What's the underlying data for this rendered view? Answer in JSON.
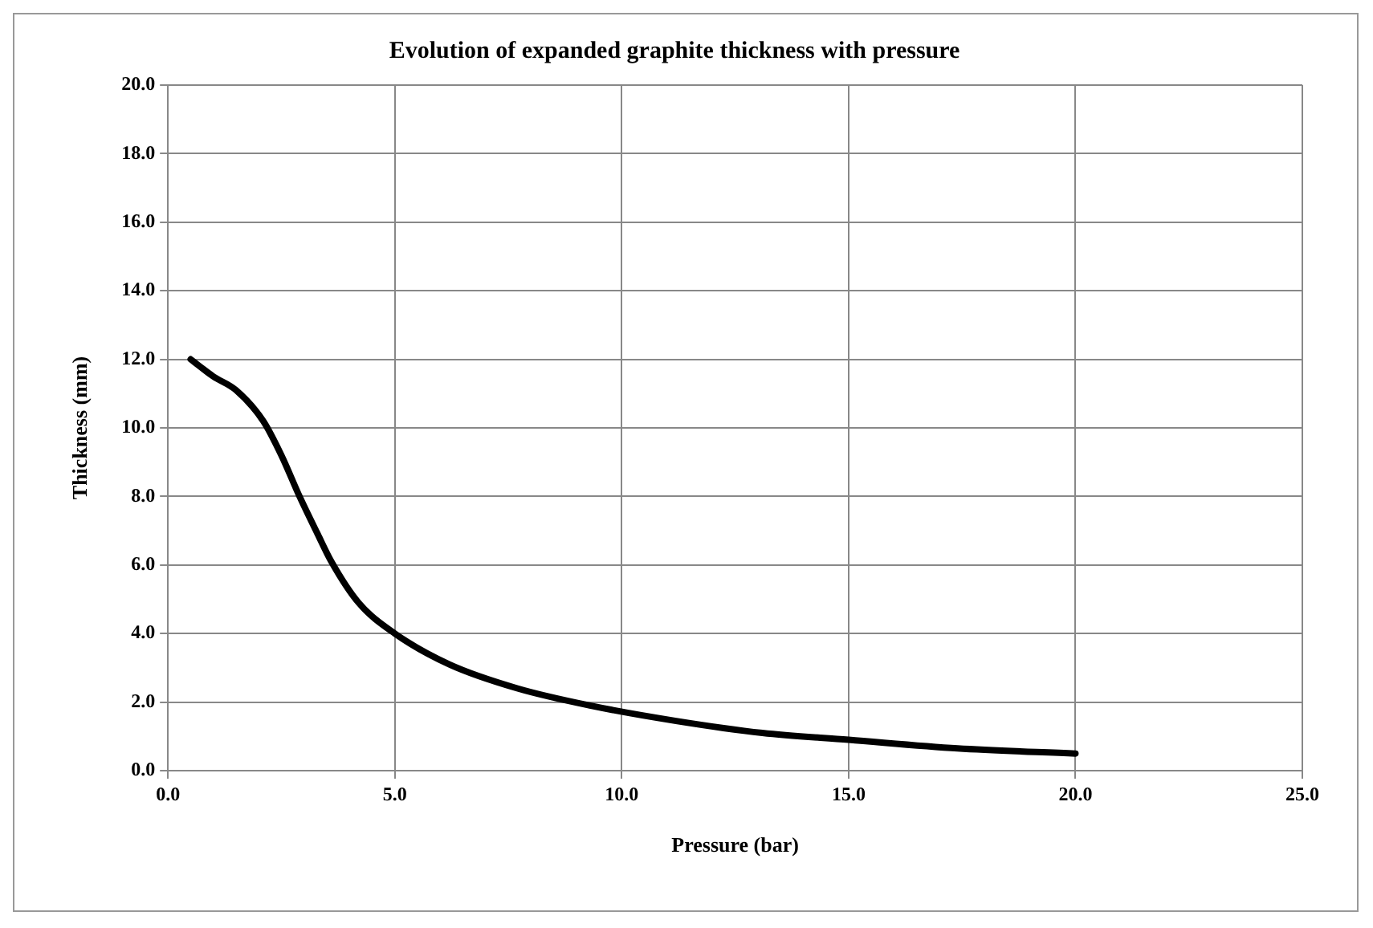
{
  "chart_data": {
    "type": "line",
    "title": "Evolution of expanded graphite thickness with pressure",
    "xlabel": "Pressure (bar)",
    "ylabel": "Thickness (mm)",
    "x": [
      0.5,
      1.0,
      1.5,
      2.1,
      2.5,
      2.9,
      3.3,
      3.6,
      4.2,
      5.0,
      6.2,
      7.7,
      9.3,
      11.2,
      13.1,
      15.0,
      17.4,
      20.0
    ],
    "series": [
      {
        "color": "#000000",
        "values": [
          12.0,
          11.5,
          11.1,
          10.2,
          9.2,
          8.0,
          6.9,
          6.1,
          4.9,
          4.0,
          3.1,
          2.4,
          1.9,
          1.45,
          1.1,
          0.9,
          0.65,
          0.5
        ]
      }
    ],
    "xlim": [
      0,
      25
    ],
    "xticks": [
      {
        "value": 0,
        "label": "0.0"
      },
      {
        "value": 5,
        "label": "5.0"
      },
      {
        "value": 10,
        "label": "10.0"
      },
      {
        "value": 15,
        "label": "15.0"
      },
      {
        "value": 20,
        "label": "20.0"
      },
      {
        "value": 25,
        "label": "25.0"
      }
    ],
    "ylim": [
      0,
      20
    ],
    "yticks": [
      {
        "value": 0,
        "label": "0.0"
      },
      {
        "value": 2,
        "label": "2.0"
      },
      {
        "value": 4,
        "label": "4.0"
      },
      {
        "value": 6,
        "label": "6.0"
      },
      {
        "value": 8,
        "label": "8.0"
      },
      {
        "value": 10,
        "label": "10.0"
      },
      {
        "value": 12,
        "label": "12.0"
      },
      {
        "value": 14,
        "label": "14.0"
      },
      {
        "value": 16,
        "label": "16.0"
      },
      {
        "value": 18,
        "label": "18.0"
      },
      {
        "value": 20,
        "label": "20.0"
      }
    ],
    "grid": true,
    "legend": false,
    "marker": "none",
    "line_style": "solid"
  }
}
